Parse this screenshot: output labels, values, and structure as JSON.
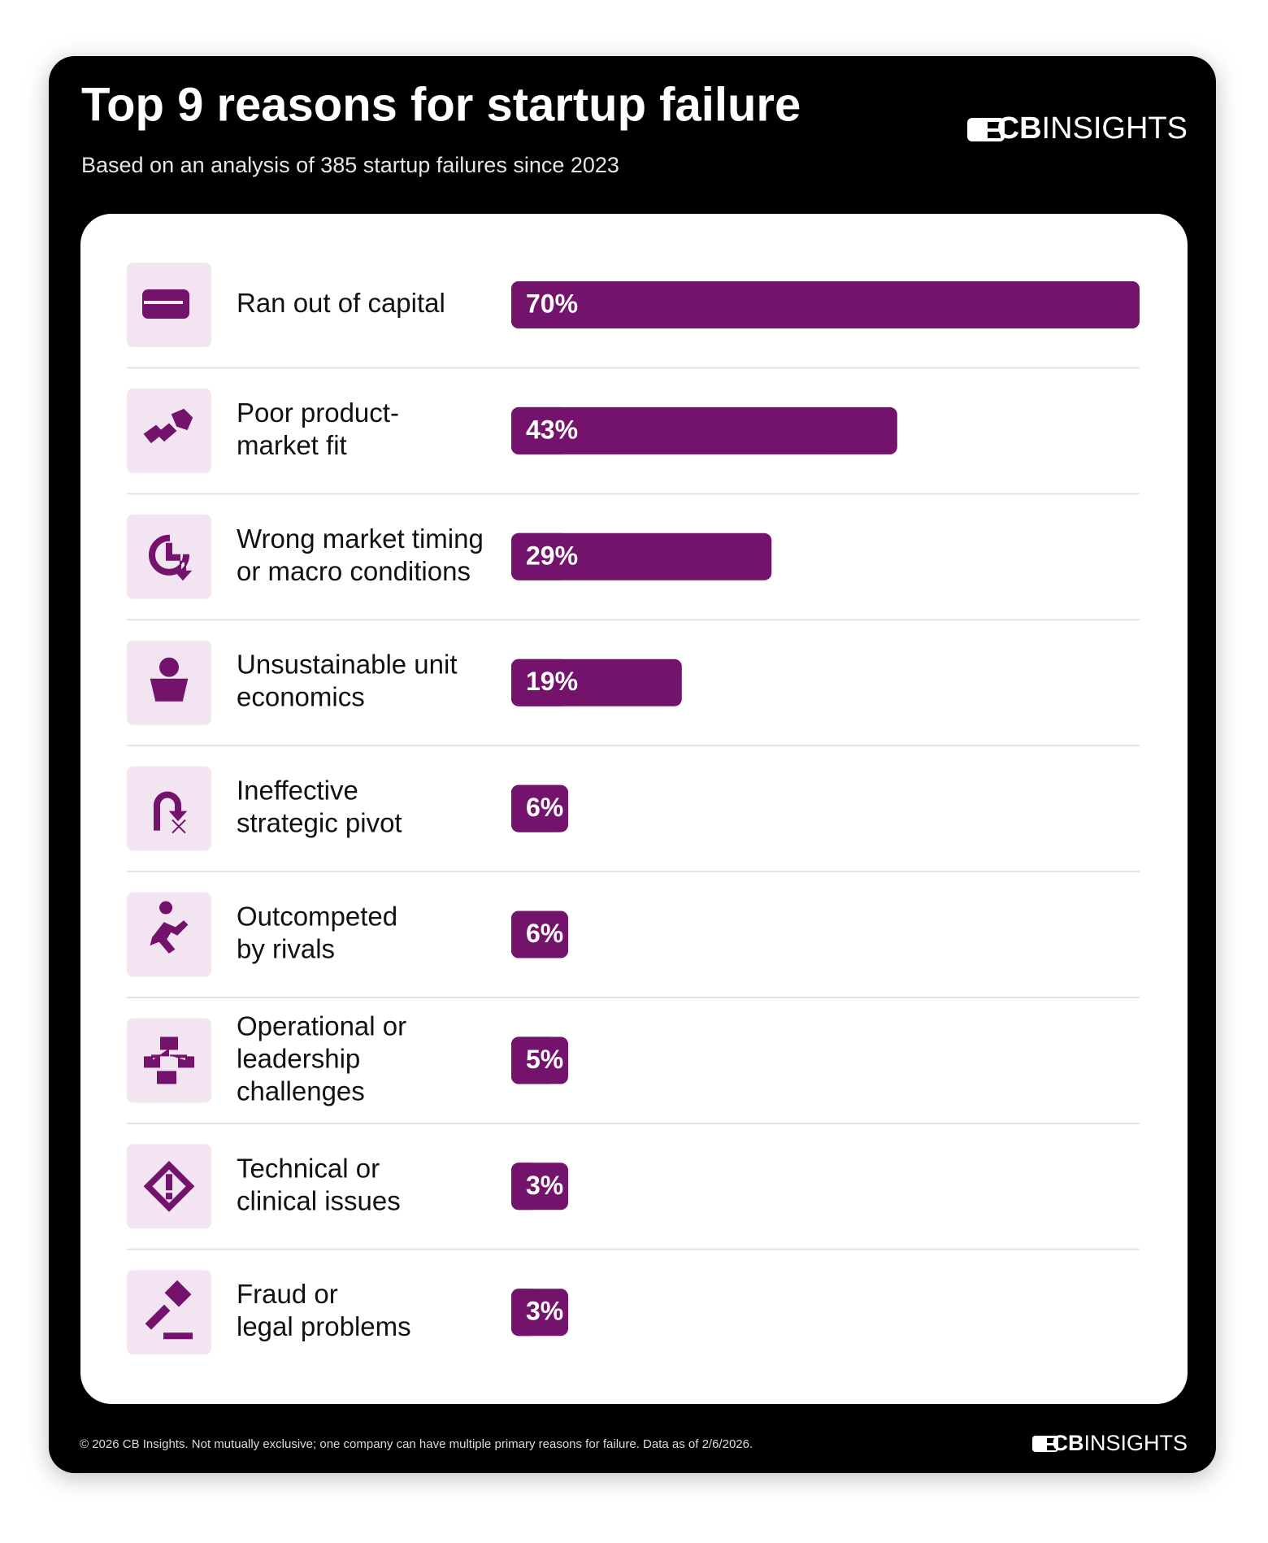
{
  "chart_data": {
    "type": "bar",
    "orientation": "horizontal",
    "title": "Top 9 reasons for startup failure",
    "subtitle": "Based on an analysis of 385 startup failures since 2023",
    "brand_prefix": "CB",
    "brand_name": "INSIGHTS",
    "categories": [
      "Ran out of capital",
      "Poor product-\nmarket fit",
      "Wrong market timing\nor macro conditions",
      "Unsustainable unit\neconomics",
      "Ineffective\nstrategic pivot",
      "Outcompeted\nby rivals",
      "Operational or\nleadership\nchallenges",
      "Technical or\nclinical issues",
      "Fraud or\nlegal problems"
    ],
    "values": [
      70,
      43,
      29,
      19,
      6,
      6,
      5,
      3,
      3
    ],
    "value_labels": [
      "70%",
      "43%",
      "29%",
      "19%",
      "6%",
      "6%",
      "5%",
      "3%",
      "3%"
    ],
    "color": "#74136b",
    "footnote": "© 2026 CB Insights. Not mutually exclusive; one company can have multiple primary reasons for failure. Data as of 2/6/2026."
  }
}
